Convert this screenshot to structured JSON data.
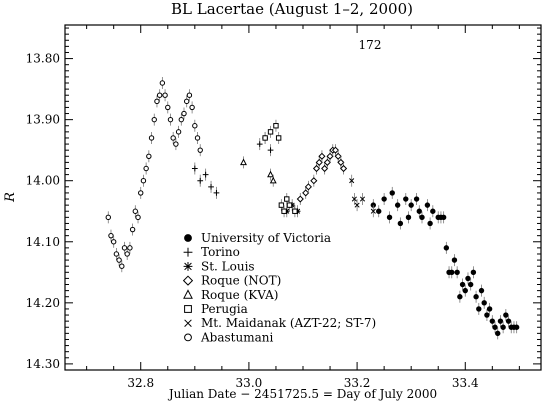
{
  "chart_data": {
    "type": "scatter",
    "title": "BL Lacertae    (August 1–2, 2000)",
    "annotation": "172",
    "xlabel": "Julian Date − 2451725.5 = Day of July 2000",
    "ylabel": "R",
    "xlim": [
      32.66,
      33.54
    ],
    "ylim": [
      14.31,
      13.745
    ],
    "y_inverted": true,
    "x_ticks": [
      {
        "value": 32.8,
        "label": "32.8"
      },
      {
        "value": 33.0,
        "label": "33.0"
      },
      {
        "value": 33.2,
        "label": "33.2"
      },
      {
        "value": 33.4,
        "label": "33.4"
      }
    ],
    "y_ticks": [
      {
        "value": 13.8,
        "label": "13.80"
      },
      {
        "value": 13.9,
        "label": "13.90"
      },
      {
        "value": 14.0,
        "label": "14.00"
      },
      {
        "value": 14.1,
        "label": "14.10"
      },
      {
        "value": 14.2,
        "label": "14.20"
      },
      {
        "value": 14.3,
        "label": "14.30"
      }
    ],
    "grid": false,
    "legend_position": "lower-left",
    "series": [
      {
        "name": "University of Victoria",
        "marker": "filled-circle",
        "points": [
          [
            33.23,
            14.04
          ],
          [
            33.24,
            14.05
          ],
          [
            33.25,
            14.03
          ],
          [
            33.26,
            14.06
          ],
          [
            33.265,
            14.02
          ],
          [
            33.275,
            14.04
          ],
          [
            33.28,
            14.07
          ],
          [
            33.29,
            14.03
          ],
          [
            33.295,
            14.06
          ],
          [
            33.3,
            14.04
          ],
          [
            33.31,
            14.03
          ],
          [
            33.315,
            14.05
          ],
          [
            33.32,
            14.06
          ],
          [
            33.33,
            14.04
          ],
          [
            33.335,
            14.07
          ],
          [
            33.34,
            14.05
          ],
          [
            33.35,
            14.06
          ],
          [
            33.355,
            14.06
          ],
          [
            33.36,
            14.06
          ],
          [
            33.365,
            14.11
          ],
          [
            33.37,
            14.15
          ],
          [
            33.375,
            14.15
          ],
          [
            33.38,
            14.13
          ],
          [
            33.385,
            14.15
          ],
          [
            33.39,
            14.19
          ],
          [
            33.395,
            14.17
          ],
          [
            33.4,
            14.18
          ],
          [
            33.405,
            14.16
          ],
          [
            33.41,
            14.17
          ],
          [
            33.415,
            14.15
          ],
          [
            33.42,
            14.19
          ],
          [
            33.425,
            14.21
          ],
          [
            33.43,
            14.18
          ],
          [
            33.435,
            14.2
          ],
          [
            33.44,
            14.22
          ],
          [
            33.445,
            14.21
          ],
          [
            33.45,
            14.23
          ],
          [
            33.455,
            14.24
          ],
          [
            33.46,
            14.25
          ],
          [
            33.465,
            14.23
          ],
          [
            33.47,
            14.24
          ],
          [
            33.475,
            14.22
          ],
          [
            33.48,
            14.23
          ],
          [
            33.485,
            14.24
          ],
          [
            33.49,
            14.24
          ],
          [
            33.495,
            14.24
          ]
        ]
      },
      {
        "name": "Torino",
        "marker": "plus",
        "points": [
          [
            32.9,
            13.98
          ],
          [
            32.91,
            14.0
          ],
          [
            32.92,
            13.99
          ],
          [
            32.93,
            14.01
          ],
          [
            32.94,
            14.02
          ],
          [
            33.02,
            13.94
          ],
          [
            33.03,
            13.93
          ],
          [
            33.04,
            13.95
          ]
        ]
      },
      {
        "name": "St. Louis",
        "marker": "asterisk",
        "points": [
          [
            33.07,
            14.05
          ],
          [
            33.08,
            14.04
          ],
          [
            33.09,
            14.05
          ]
        ]
      },
      {
        "name": "Roque (NOT)",
        "marker": "open-diamond",
        "points": [
          [
            33.095,
            14.03
          ],
          [
            33.105,
            14.02
          ],
          [
            33.11,
            14.01
          ],
          [
            33.12,
            14.0
          ],
          [
            33.125,
            13.98
          ],
          [
            33.13,
            13.97
          ],
          [
            33.135,
            13.96
          ],
          [
            33.14,
            13.98
          ],
          [
            33.145,
            13.97
          ],
          [
            33.15,
            13.96
          ],
          [
            33.155,
            13.95
          ],
          [
            33.16,
            13.95
          ],
          [
            33.165,
            13.96
          ],
          [
            33.17,
            13.97
          ],
          [
            33.175,
            13.98
          ]
        ]
      },
      {
        "name": "Roque (KVA)",
        "marker": "open-triangle",
        "points": [
          [
            32.99,
            13.97
          ],
          [
            33.04,
            13.99
          ],
          [
            33.045,
            14.0
          ]
        ]
      },
      {
        "name": "Perugia",
        "marker": "open-square",
        "points": [
          [
            33.03,
            13.93
          ],
          [
            33.04,
            13.92
          ],
          [
            33.05,
            13.91
          ],
          [
            33.055,
            13.93
          ],
          [
            33.06,
            14.04
          ],
          [
            33.065,
            14.05
          ],
          [
            33.07,
            14.03
          ],
          [
            33.075,
            14.04
          ],
          [
            33.085,
            14.05
          ]
        ]
      },
      {
        "name": "Mt. Maidanak (AZT-22; ST-7)",
        "marker": "cross",
        "points": [
          [
            33.19,
            14.0
          ],
          [
            33.195,
            14.03
          ],
          [
            33.2,
            14.04
          ],
          [
            33.21,
            14.03
          ],
          [
            33.23,
            14.05
          ]
        ]
      },
      {
        "name": "Abastumani",
        "marker": "open-circle",
        "points": [
          [
            32.74,
            14.06
          ],
          [
            32.745,
            14.09
          ],
          [
            32.75,
            14.1
          ],
          [
            32.755,
            14.12
          ],
          [
            32.76,
            14.13
          ],
          [
            32.765,
            14.14
          ],
          [
            32.77,
            14.11
          ],
          [
            32.775,
            14.12
          ],
          [
            32.78,
            14.11
          ],
          [
            32.785,
            14.08
          ],
          [
            32.79,
            14.05
          ],
          [
            32.795,
            14.06
          ],
          [
            32.8,
            14.02
          ],
          [
            32.805,
            14.0
          ],
          [
            32.81,
            13.98
          ],
          [
            32.815,
            13.96
          ],
          [
            32.82,
            13.93
          ],
          [
            32.825,
            13.9
          ],
          [
            32.83,
            13.87
          ],
          [
            32.835,
            13.86
          ],
          [
            32.84,
            13.84
          ],
          [
            32.845,
            13.86
          ],
          [
            32.85,
            13.88
          ],
          [
            32.855,
            13.9
          ],
          [
            32.86,
            13.93
          ],
          [
            32.865,
            13.94
          ],
          [
            32.87,
            13.92
          ],
          [
            32.875,
            13.9
          ],
          [
            32.88,
            13.89
          ],
          [
            32.885,
            13.87
          ],
          [
            32.89,
            13.86
          ],
          [
            32.895,
            13.88
          ],
          [
            32.9,
            13.91
          ],
          [
            32.905,
            13.93
          ],
          [
            32.91,
            13.95
          ]
        ]
      }
    ]
  }
}
